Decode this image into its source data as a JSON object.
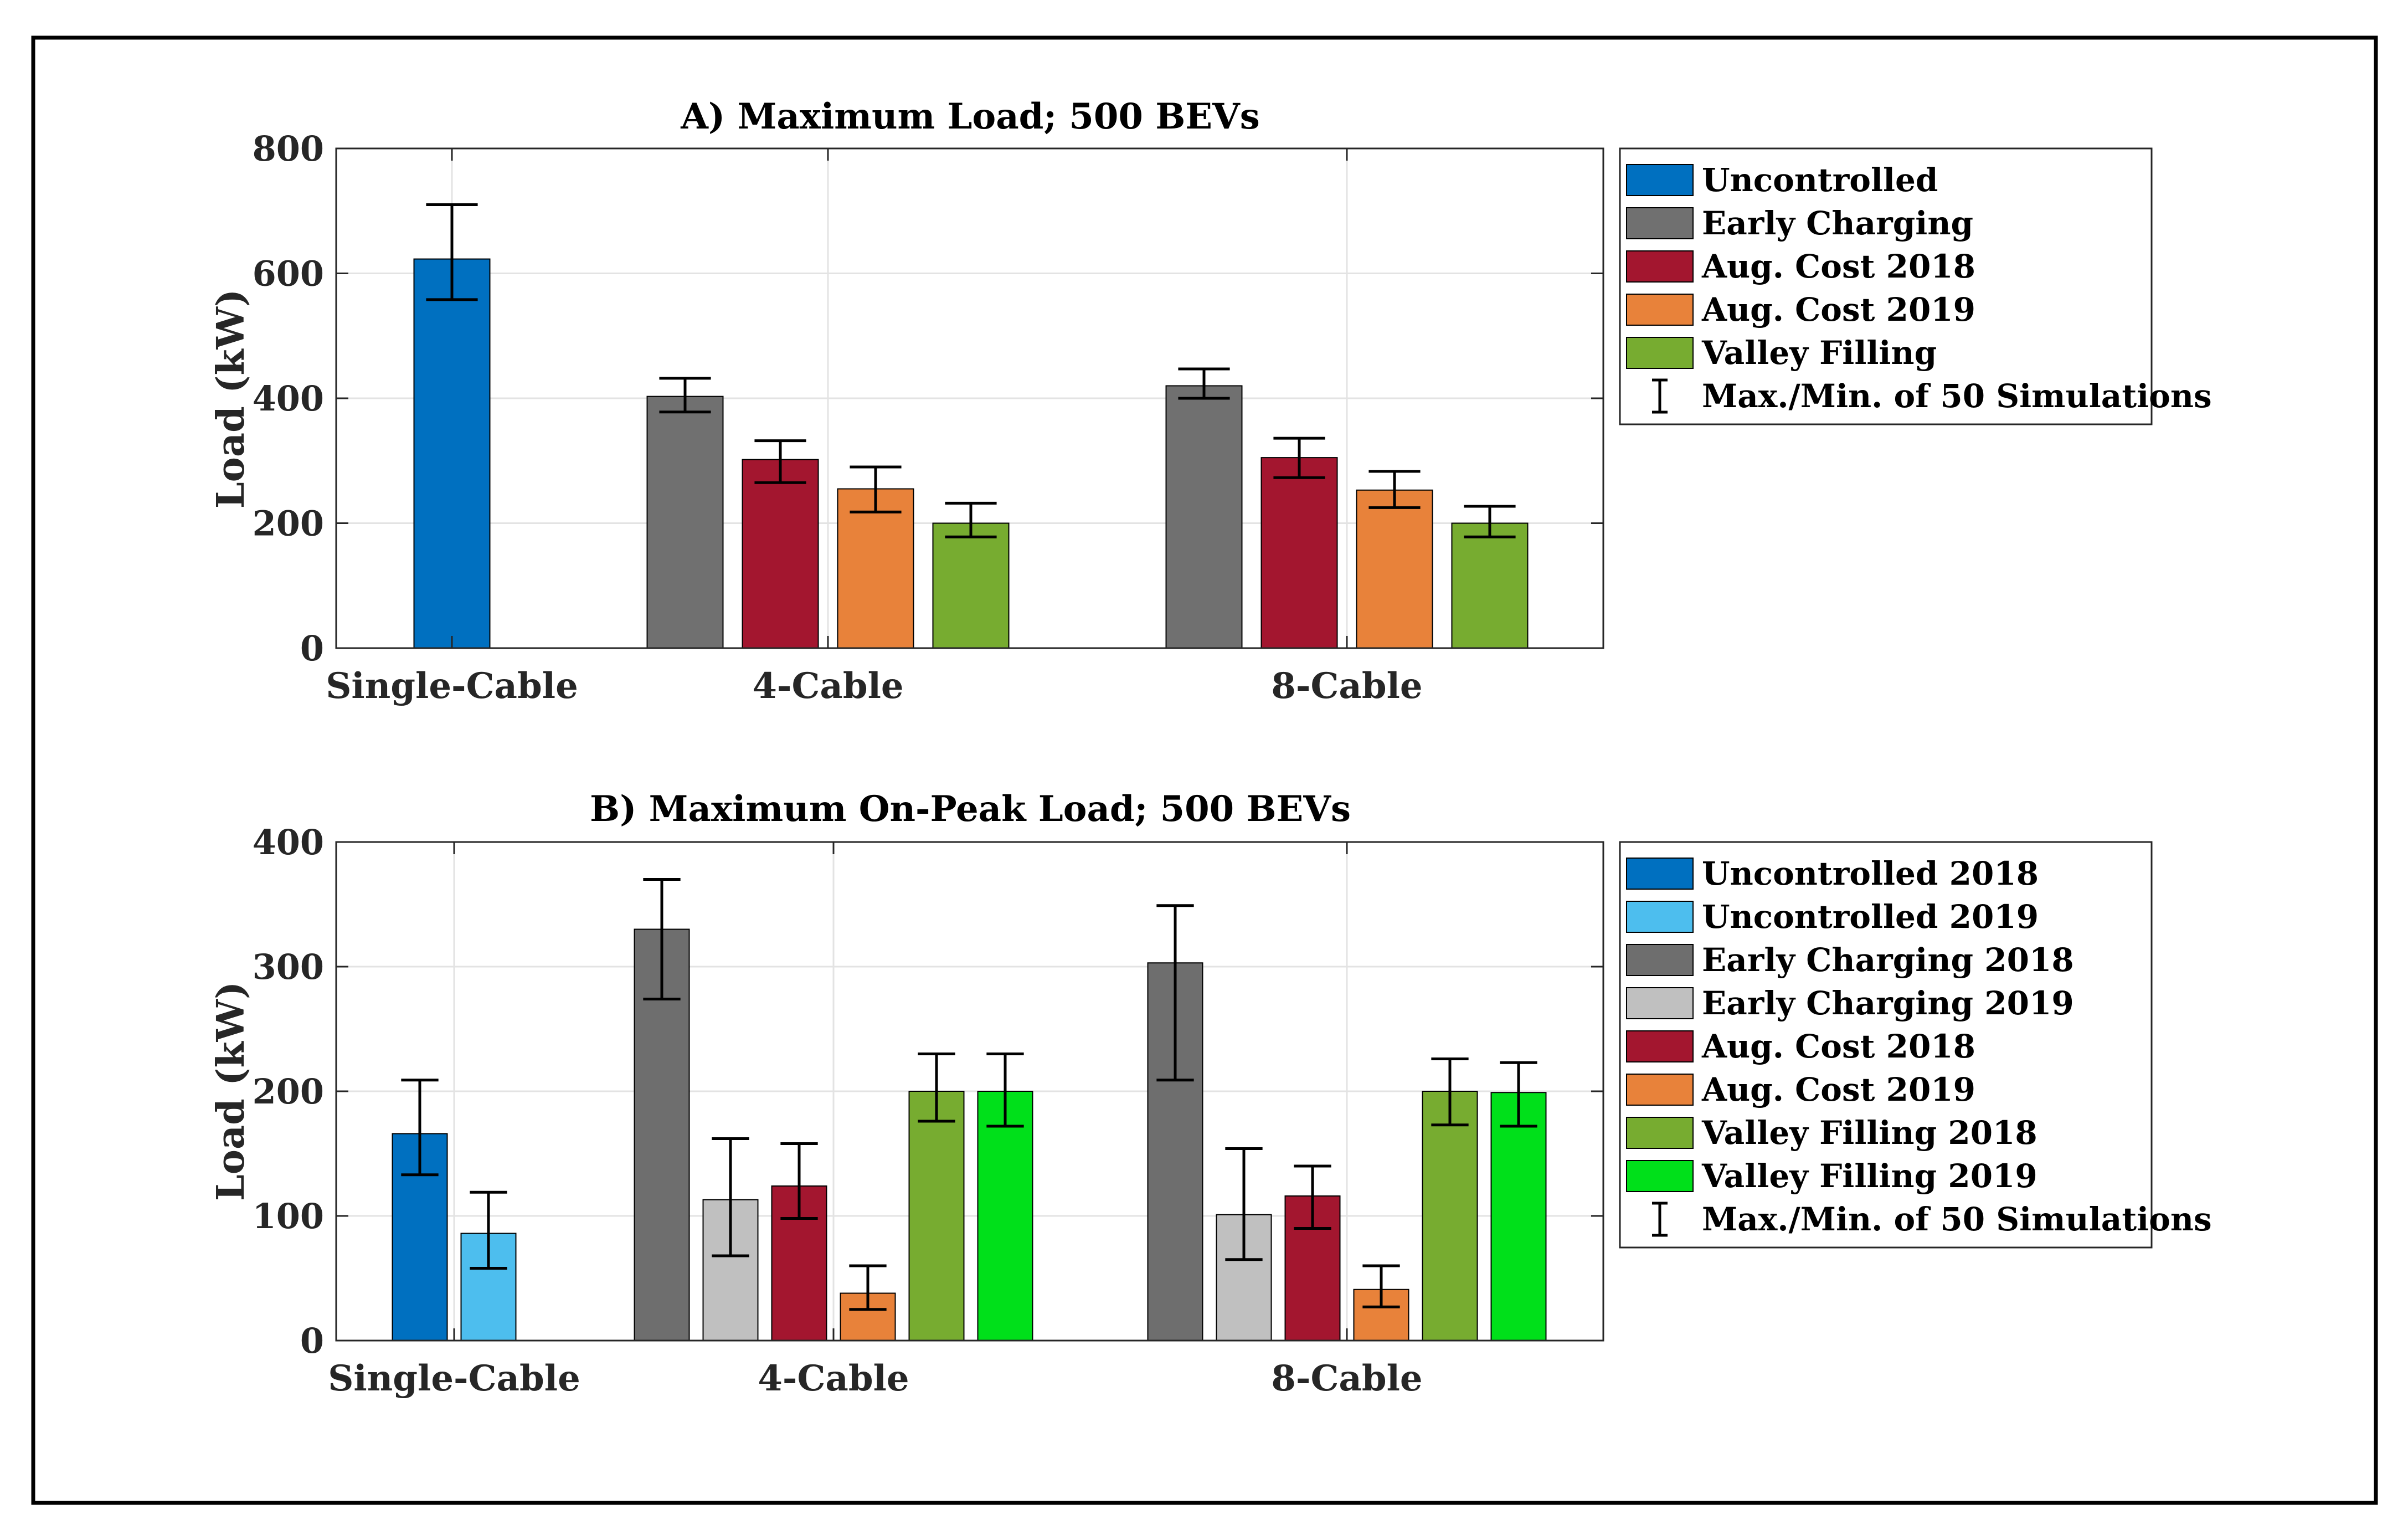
{
  "chart_data": [
    {
      "id": "A",
      "type": "bar",
      "title": "A) Maximum Load; 500 BEVs",
      "xlabel": "",
      "ylabel": "Load (kW)",
      "ylim": [
        0,
        800
      ],
      "yticks": [
        0,
        200,
        400,
        600,
        800
      ],
      "grid": true,
      "legend_position": "outside-right-top",
      "categories": [
        "Single-Cable",
        "4-Cable",
        "8-Cable"
      ],
      "series": [
        {
          "name": "Uncontrolled",
          "color": "#0070c0",
          "values": [
            623,
            null,
            null
          ],
          "err_min": [
            558,
            null,
            null
          ],
          "err_max": [
            710,
            null,
            null
          ]
        },
        {
          "name": "Early Charging",
          "color": "#707070",
          "values": [
            null,
            403,
            420
          ],
          "err_min": [
            null,
            378,
            400
          ],
          "err_max": [
            null,
            432,
            447
          ]
        },
        {
          "name": "Aug. Cost 2018",
          "color": "#a3162f",
          "values": [
            null,
            302,
            305
          ],
          "err_min": [
            null,
            265,
            273
          ],
          "err_max": [
            null,
            332,
            336
          ]
        },
        {
          "name": "Aug. Cost 2019",
          "color": "#e8823a",
          "values": [
            null,
            255,
            253
          ],
          "err_min": [
            null,
            218,
            225
          ],
          "err_max": [
            null,
            290,
            283
          ]
        },
        {
          "name": "Valley Filling",
          "color": "#77ac30",
          "values": [
            null,
            200,
            200
          ],
          "err_min": [
            null,
            178,
            178
          ],
          "err_max": [
            null,
            232,
            227
          ]
        }
      ],
      "error_legend": "Max./Min. of 50 Simulations"
    },
    {
      "id": "B",
      "type": "bar",
      "title": "B) Maximum On-Peak Load; 500 BEVs",
      "xlabel": "",
      "ylabel": "Load (kW)",
      "ylim": [
        0,
        400
      ],
      "yticks": [
        0,
        100,
        200,
        300,
        400
      ],
      "grid": true,
      "legend_position": "outside-right-top",
      "categories": [
        "Single-Cable",
        "4-Cable",
        "8-Cable"
      ],
      "series": [
        {
          "name": "Uncontrolled 2018",
          "color": "#0070c0",
          "values": [
            166,
            null,
            null
          ],
          "err_min": [
            133,
            null,
            null
          ],
          "err_max": [
            209,
            null,
            null
          ]
        },
        {
          "name": "Uncontrolled 2019",
          "color": "#4dbeee",
          "values": [
            86,
            null,
            null
          ],
          "err_min": [
            58,
            null,
            null
          ],
          "err_max": [
            119,
            null,
            null
          ]
        },
        {
          "name": "Early Charging 2018",
          "color": "#6e6e6e",
          "values": [
            null,
            330,
            303
          ],
          "err_min": [
            null,
            274,
            209
          ],
          "err_max": [
            null,
            370,
            349
          ]
        },
        {
          "name": "Early Charging 2019",
          "color": "#c0c0c0",
          "values": [
            null,
            113,
            101
          ],
          "err_min": [
            null,
            68,
            65
          ],
          "err_max": [
            null,
            162,
            154
          ]
        },
        {
          "name": "Aug. Cost 2018",
          "color": "#a3162f",
          "values": [
            null,
            124,
            116
          ],
          "err_min": [
            null,
            98,
            90
          ],
          "err_max": [
            null,
            158,
            140
          ]
        },
        {
          "name": "Aug. Cost 2019",
          "color": "#e8823a",
          "values": [
            null,
            38,
            41
          ],
          "err_min": [
            null,
            25,
            27
          ],
          "err_max": [
            null,
            60,
            60
          ]
        },
        {
          "name": "Valley Filling 2018",
          "color": "#77ac30",
          "values": [
            null,
            200,
            200
          ],
          "err_min": [
            null,
            176,
            173
          ],
          "err_max": [
            null,
            230,
            226
          ]
        },
        {
          "name": "Valley Filling 2019",
          "color": "#00e01a",
          "values": [
            null,
            200,
            199
          ],
          "err_min": [
            null,
            172,
            172
          ],
          "err_max": [
            null,
            230,
            223
          ]
        }
      ],
      "error_legend": "Max./Min. of 50 Simulations"
    }
  ]
}
